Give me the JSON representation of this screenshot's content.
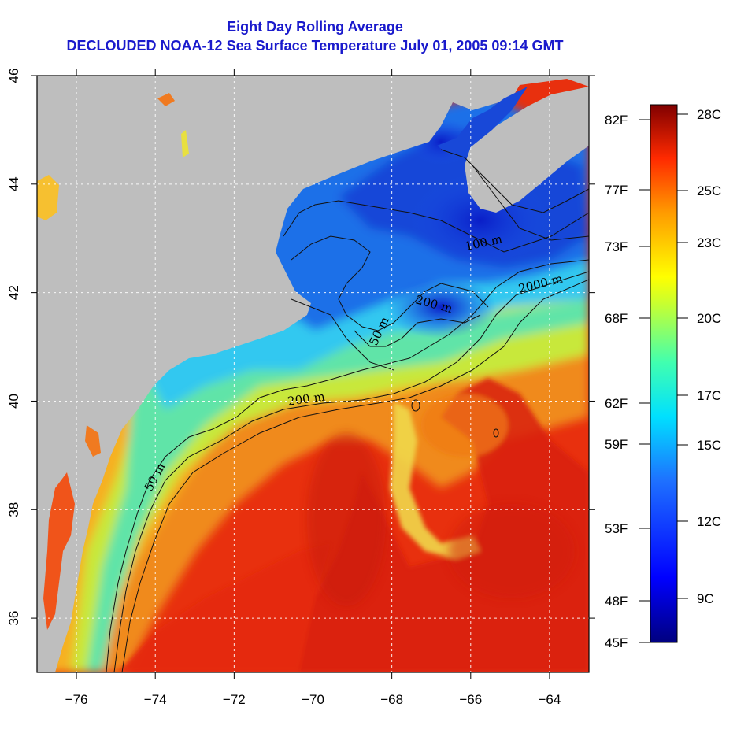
{
  "title": {
    "line1": "Eight Day Rolling Average",
    "line2": "DECLOUDED NOAA-12 Sea Surface Temperature July 01, 2005 09:14 GMT"
  },
  "map": {
    "lon_range": [
      -77,
      -63
    ],
    "lat_range": [
      35,
      46
    ],
    "lon_ticks": [
      -76,
      -74,
      -72,
      -70,
      -68,
      -66,
      -64
    ],
    "lat_ticks": [
      36,
      38,
      40,
      42,
      44,
      46
    ],
    "lon_tick_labels": [
      "−76",
      "−74",
      "−72",
      "−70",
      "−68",
      "−66",
      "−64"
    ],
    "lat_tick_labels": [
      "36",
      "38",
      "40",
      "42",
      "44",
      "46"
    ],
    "grid": true,
    "land_color": "#bebebe"
  },
  "contour_labels": [
    "50 m",
    "50 m",
    "200 m",
    "200 m",
    "100 m",
    "2000 m"
  ],
  "fahrenheit_ticks": [
    "82F",
    "77F",
    "73F",
    "68F",
    "62F",
    "59F",
    "53F",
    "48F",
    "45F"
  ],
  "colorbar": {
    "labels": [
      "28C",
      "25C",
      "23C",
      "20C",
      "17C",
      "15C",
      "12C",
      "9C"
    ],
    "range_c": [
      7.2,
      28.3
    ]
  },
  "colors": {
    "title": "#1a1acc",
    "warm": "#e8200e",
    "cold": "#1030d0"
  }
}
